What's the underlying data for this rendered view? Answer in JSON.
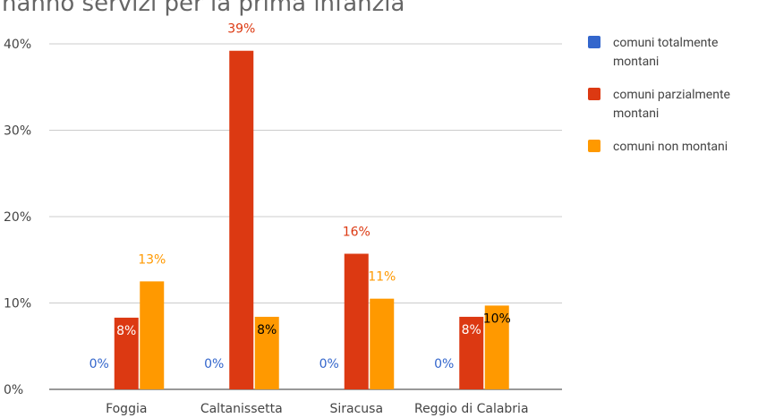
{
  "chart_data": {
    "type": "bar",
    "title": "hanno servizi per la prima infanzia",
    "categories": [
      "Foggia",
      "Caltanissetta",
      "Siracusa",
      "Reggio di Calabria"
    ],
    "series": [
      {
        "name": "comuni totalmente montani",
        "color": "#3366cc",
        "values": [
          0,
          0,
          0,
          0
        ],
        "value_labels": [
          "0%",
          "0%",
          "0%",
          "0%"
        ]
      },
      {
        "name": "comuni parzialmente montani",
        "color": "#dc3912",
        "values": [
          8.3,
          39.2,
          15.7,
          8.4
        ],
        "value_labels": [
          "8%",
          "39%",
          "16%",
          "8%"
        ]
      },
      {
        "name": "comuni non montani",
        "color": "#ff9900",
        "values": [
          12.5,
          8.4,
          10.5,
          9.7
        ],
        "value_labels": [
          "13%",
          "8%",
          "11%",
          "10%"
        ]
      }
    ],
    "ylim": [
      0,
      40
    ],
    "yticks": [
      {
        "value": 0,
        "label": "0%"
      },
      {
        "value": 10,
        "label": "10%"
      },
      {
        "value": 20,
        "label": "20%"
      },
      {
        "value": 30,
        "label": "30%"
      },
      {
        "value": 40,
        "label": "40%"
      }
    ],
    "grid": true,
    "legend": "right"
  }
}
